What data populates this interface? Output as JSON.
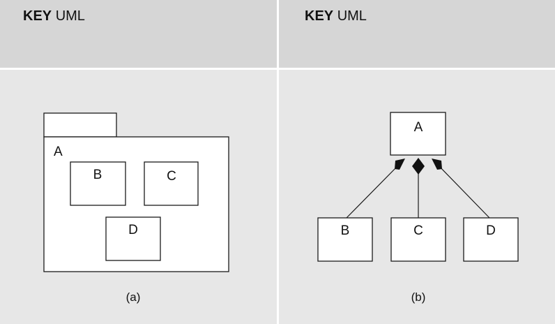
{
  "left_panel": {
    "key_bold": "KEY",
    "key_rest": "UML",
    "package": {
      "name": "A",
      "members": [
        "B",
        "C",
        "D"
      ]
    },
    "caption": "(a)"
  },
  "right_panel": {
    "key_bold": "KEY",
    "key_rest": "UML",
    "parent": "A",
    "children": [
      "B",
      "C",
      "D"
    ],
    "caption": "(b)"
  },
  "colors": {
    "header": "#d6d6d6",
    "body": "#e7e7e7",
    "divider": "#ffffff",
    "stroke": "#1a1a1a"
  }
}
